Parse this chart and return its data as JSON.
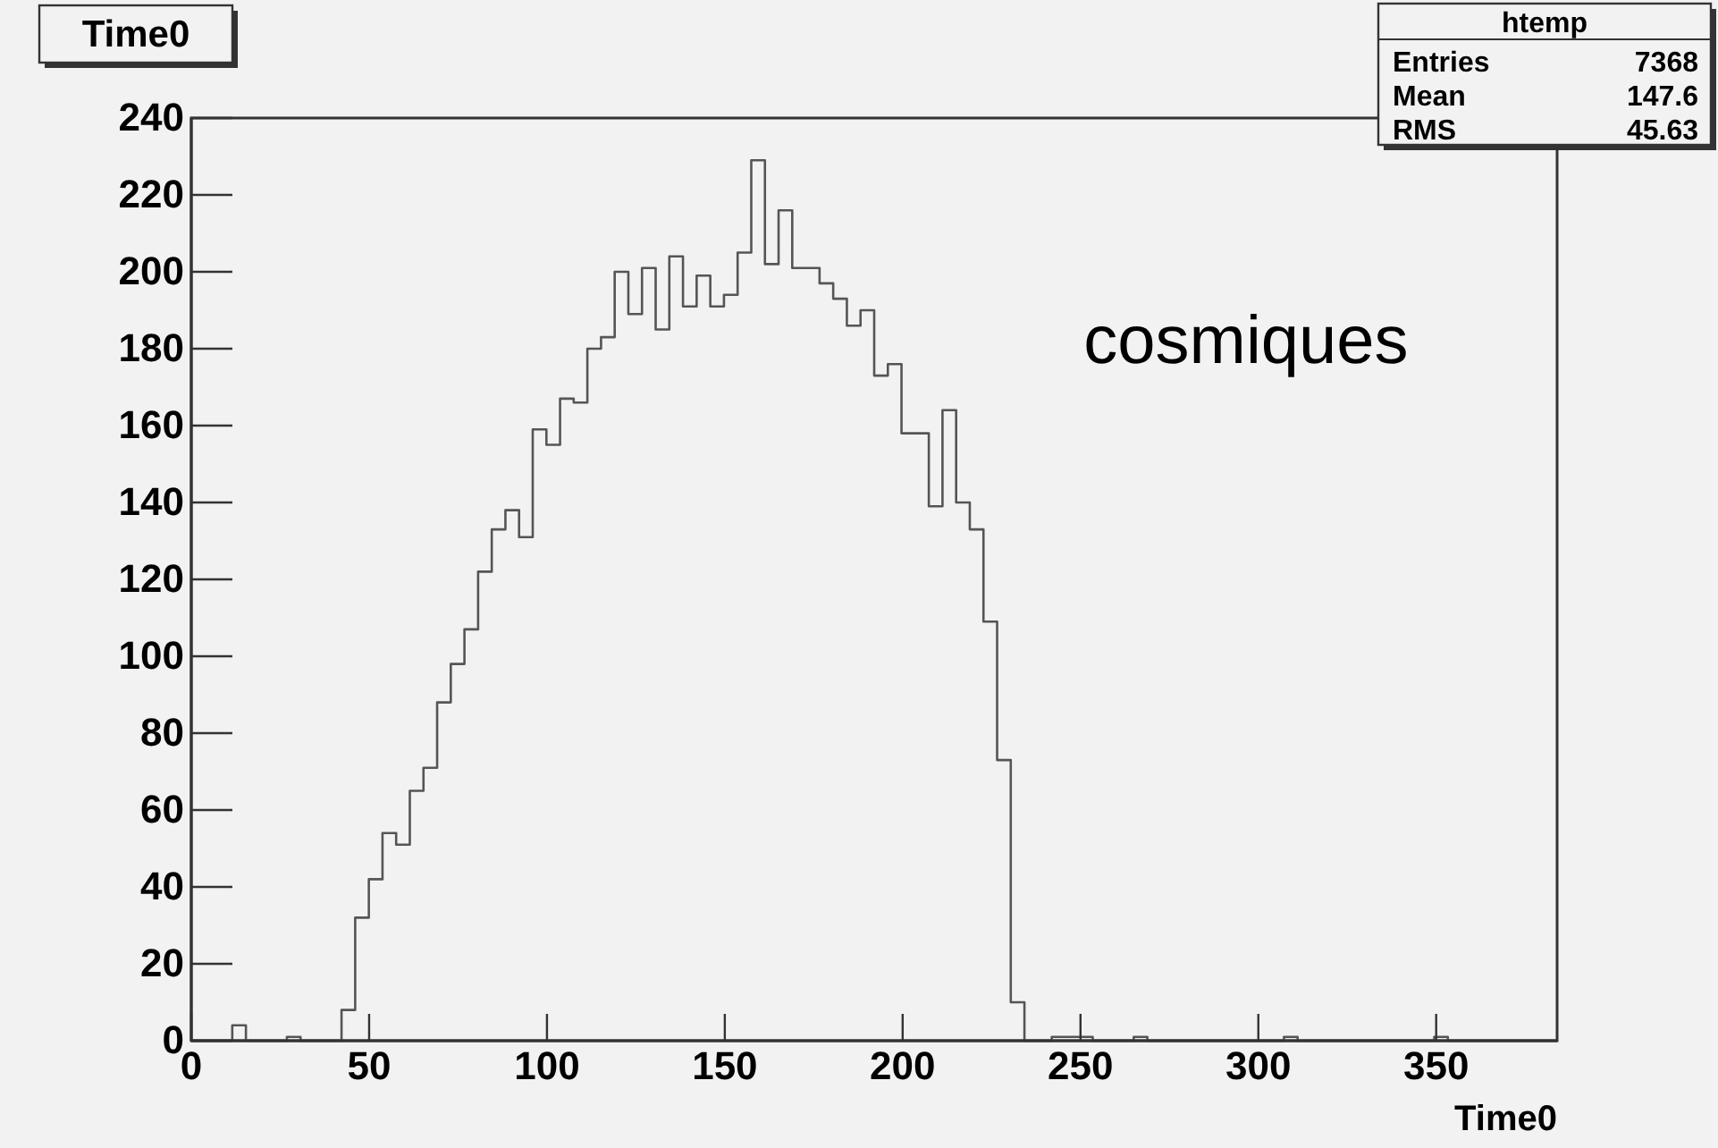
{
  "chart_data": {
    "type": "histogram",
    "title": "Time0",
    "xlabel": "Time0",
    "annotations": [
      "cosmiques",
      "htemp",
      "Entries",
      "7368",
      "Mean",
      "147.6",
      "RMS",
      "45.63"
    ],
    "bins": [
      0,
      3.84,
      7.68,
      11.52,
      15.36,
      19.2,
      23.04,
      26.88,
      30.72,
      34.56,
      38.4,
      42.24,
      46.08,
      49.92,
      53.76,
      57.6,
      61.44,
      65.28,
      69.12,
      72.96,
      76.8,
      80.64,
      84.48,
      88.32,
      92.16,
      96,
      99.84,
      103.68,
      107.52,
      111.36,
      115.2,
      119.04,
      122.88,
      126.72,
      130.56,
      134.4,
      138.24,
      142.08,
      145.92,
      149.76,
      153.6,
      157.44,
      161.28,
      165.12,
      168.96,
      172.8,
      176.64,
      180.48,
      184.32,
      188.16,
      192,
      195.84,
      199.68,
      203.52,
      207.36,
      211.2,
      215.04,
      218.88,
      222.72,
      226.56,
      230.4,
      234.24,
      238.08,
      241.92,
      245.76,
      249.6,
      253.44,
      257.28,
      261.12,
      264.96,
      268.8,
      272.64,
      276.48,
      280.32,
      284.16,
      288,
      291.84,
      295.68,
      299.52,
      303.36,
      307.2,
      311.04,
      314.88,
      318.72,
      322.56,
      326.4,
      330.24,
      334.08,
      337.92,
      341.76,
      345.6,
      349.44,
      353.28,
      357.12,
      360.96,
      364.8,
      368.64,
      372.48,
      376.32,
      380.16,
      384
    ],
    "values": [
      0,
      0,
      0,
      4,
      0,
      0,
      0,
      1,
      0,
      0,
      0,
      8,
      32,
      42,
      54,
      51,
      65,
      71,
      88,
      98,
      107,
      122,
      133,
      138,
      131,
      159,
      155,
      167,
      166,
      180,
      183,
      200,
      189,
      201,
      185,
      204,
      191,
      199,
      191,
      194,
      205,
      229,
      202,
      216,
      201,
      201,
      197,
      193,
      186,
      190,
      173,
      176,
      158,
      158,
      139,
      164,
      140,
      133,
      109,
      73,
      10,
      0,
      0,
      1,
      1,
      1,
      0,
      0,
      0,
      1,
      0,
      0,
      0,
      0,
      0,
      0,
      0,
      0,
      0,
      0,
      1,
      0,
      0,
      0,
      0,
      0,
      0,
      0,
      0,
      0,
      0,
      1,
      0,
      0,
      0,
      0,
      0,
      0,
      0,
      0
    ],
    "color": "#555555",
    "xlim": [
      0,
      384
    ],
    "xticks": [
      0,
      50,
      100,
      150,
      200,
      250,
      300,
      350
    ],
    "ylim": [
      0,
      240
    ],
    "yticks": [
      0,
      20,
      40,
      60,
      80,
      100,
      120,
      140,
      160,
      180,
      200,
      220,
      240
    ],
    "grid": false
  }
}
